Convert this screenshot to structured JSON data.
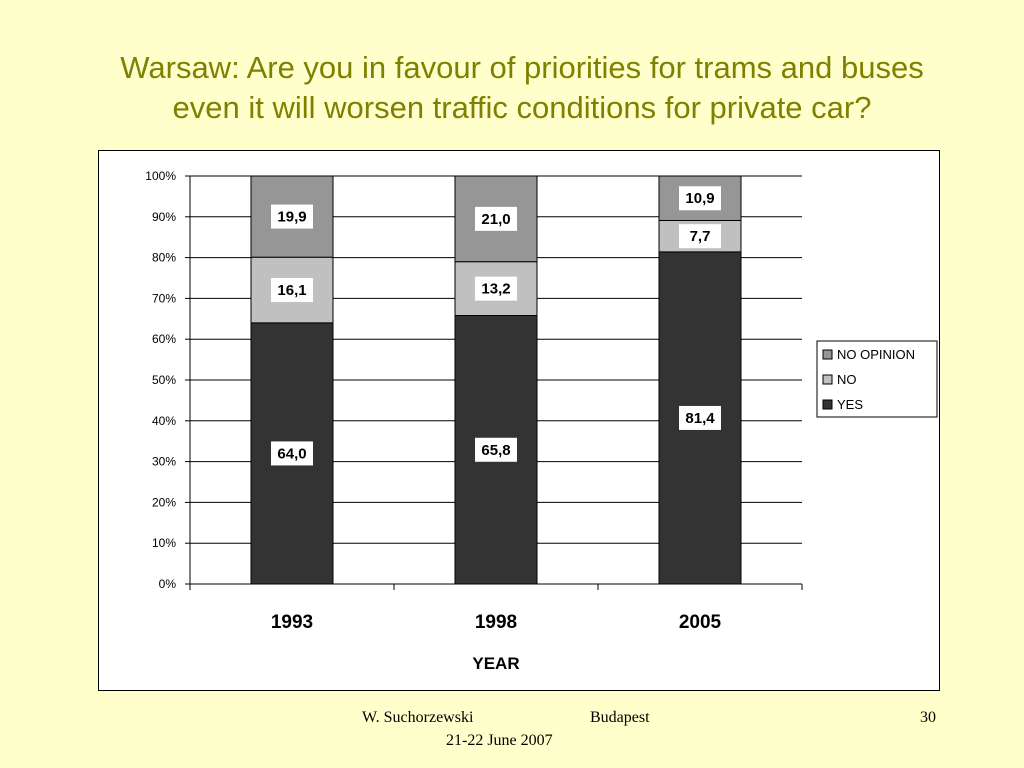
{
  "slide": {
    "title_line1": "Warsaw: Are you in favour of priorities for trams and buses",
    "title_line2": "even it will worsen traffic conditions for private car?"
  },
  "footer": {
    "author": "W. Suchorzewski",
    "place": "Budapest",
    "date": "21-22 June 2007",
    "page": "30"
  },
  "chart_data": {
    "type": "bar",
    "stacked": true,
    "percent_stacked": true,
    "categories": [
      "1993",
      "1998",
      "2005"
    ],
    "xlabel": "YEAR",
    "ylabel": "",
    "ylim": [
      0,
      100
    ],
    "yticks": [
      "0%",
      "10%",
      "20%",
      "30%",
      "40%",
      "50%",
      "60%",
      "70%",
      "80%",
      "90%",
      "100%"
    ],
    "grid": true,
    "legend_position": "right",
    "series": [
      {
        "name": "YES",
        "values": [
          64.0,
          65.8,
          81.4
        ],
        "labels": [
          "64,0",
          "65,8",
          "81,4"
        ],
        "color": "#333333"
      },
      {
        "name": "NO",
        "values": [
          16.1,
          13.2,
          7.7
        ],
        "labels": [
          "16,1",
          "13,2",
          "7,7"
        ],
        "color": "#c0c0c0"
      },
      {
        "name": "NO OPINION",
        "values": [
          19.9,
          21.0,
          10.9
        ],
        "labels": [
          "19,9",
          "21,0",
          "10,9"
        ],
        "color": "#969696"
      }
    ],
    "legend_order": [
      "NO OPINION",
      "NO",
      "YES"
    ]
  }
}
